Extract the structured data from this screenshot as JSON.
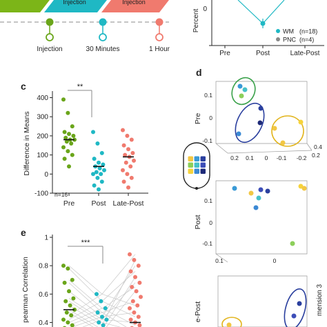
{
  "timeline": {
    "phases": [
      {
        "label": "",
        "color": "#7cb518"
      },
      {
        "label": "Injection",
        "color": "#1fb8c4"
      },
      {
        "label": "Injection",
        "color": "#f07a6e"
      }
    ],
    "points": [
      {
        "label": "Injection",
        "color": "#6aa51a",
        "filled": true
      },
      {
        "label": "30 Minutes",
        "color": "#1fb8c4",
        "filled": true
      },
      {
        "label": "1 Hour",
        "color": "#f07a6e",
        "filled": false
      }
    ]
  },
  "panel_b": {
    "ylabel": "Percent",
    "ytick": "0",
    "categories": [
      "Pre",
      "Post",
      "Late-Post"
    ],
    "legend": [
      {
        "label": "WM",
        "n": "(n=18)",
        "color": "#1fb8c4"
      },
      {
        "label": "PNC",
        "n": "(n=4)",
        "color": "#888888"
      }
    ]
  },
  "panel_c": {
    "letter": "c",
    "ylabel": "Difference in Means",
    "yticks": [
      "-100",
      "0",
      "100",
      "200",
      "300",
      "400"
    ],
    "categories": [
      "Pre",
      "Post",
      "Late-Post"
    ],
    "significance": "**",
    "n_label": "n=16"
  },
  "panel_d": {
    "letter": "d",
    "row_labels": [
      "Pre",
      "Post",
      "e-Post"
    ],
    "side_label": "mension 3",
    "pre_ticks_y": [
      "0.1",
      "0",
      "-0.1"
    ],
    "pre_ticks_x": [
      "0.2",
      "0.1",
      "0",
      "-0.1",
      "-0.2"
    ],
    "pre_ticks_z": [
      "0.4",
      "0.2"
    ],
    "post_ticks_y": [
      "0.1",
      "0",
      "-0.1"
    ],
    "post_ticks_x": [
      "0.1",
      "0"
    ],
    "electrode_colors": [
      "#f2c744",
      "#3a9ad6",
      "#2a3f9e",
      "#8ccf5a",
      "#47c1c9",
      "#3d4eb8",
      "#f6d33c",
      "#3b89d4",
      "#1e2a78"
    ]
  },
  "panel_e": {
    "letter": "e",
    "ylabel": "pearman Correlation",
    "yticks": [
      "0.4",
      "0.6",
      "0.8",
      "1"
    ],
    "significance": "***"
  },
  "chart_data": [
    {
      "type": "scatter",
      "title": "",
      "panel": "c",
      "xlabel": "",
      "ylabel": "Difference in Means",
      "ylim": [
        -100,
        420
      ],
      "categories": [
        "Pre",
        "Post",
        "Late-Post"
      ],
      "series": [
        {
          "category": "Pre",
          "color": "#6aa51a",
          "median": 180,
          "values": [
            390,
            320,
            250,
            220,
            210,
            200,
            190,
            180,
            180,
            170,
            160,
            140,
            120,
            100,
            80,
            40
          ]
        },
        {
          "category": "Post",
          "color": "#1fb8c4",
          "median": 40,
          "values": [
            220,
            160,
            110,
            80,
            60,
            50,
            40,
            30,
            20,
            10,
            0,
            0,
            -20,
            -40,
            -60,
            -80
          ]
        },
        {
          "category": "Late-Post",
          "color": "#f07a6e",
          "median": 90,
          "values": [
            230,
            200,
            180,
            150,
            130,
            110,
            100,
            90,
            70,
            60,
            40,
            20,
            0,
            -20,
            -40,
            -70
          ]
        }
      ],
      "grid": false
    },
    {
      "type": "scatter",
      "title": "",
      "panel": "e",
      "xlabel": "",
      "ylabel": "pearman Correlation",
      "ylim": [
        0.3,
        1.0
      ],
      "categories": [
        "Pre",
        "Post",
        "Late-Post"
      ],
      "series": [
        {
          "category": "Pre",
          "color": "#6aa51a",
          "median": 0.49,
          "values": [
            0.8,
            0.78,
            0.7,
            0.68,
            0.62,
            0.57,
            0.55,
            0.52,
            0.49,
            0.47,
            0.45,
            0.42,
            0.4,
            0.38,
            0.36,
            0.33
          ]
        },
        {
          "category": "Post",
          "color": "#1fb8c4",
          "median": 0.33,
          "values": [
            0.6,
            0.55,
            0.5,
            0.47,
            0.44,
            0.42,
            0.4,
            0.38,
            0.35,
            0.33
          ]
        },
        {
          "category": "Late-Post",
          "color": "#f07a6e",
          "median": 0.4,
          "values": [
            0.88,
            0.84,
            0.8,
            0.76,
            0.72,
            0.68,
            0.65,
            0.62,
            0.58,
            0.55,
            0.52,
            0.5,
            0.47,
            0.44,
            0.42,
            0.4,
            0.38,
            0.36,
            0.34,
            0.33
          ]
        }
      ],
      "grid": false
    }
  ]
}
